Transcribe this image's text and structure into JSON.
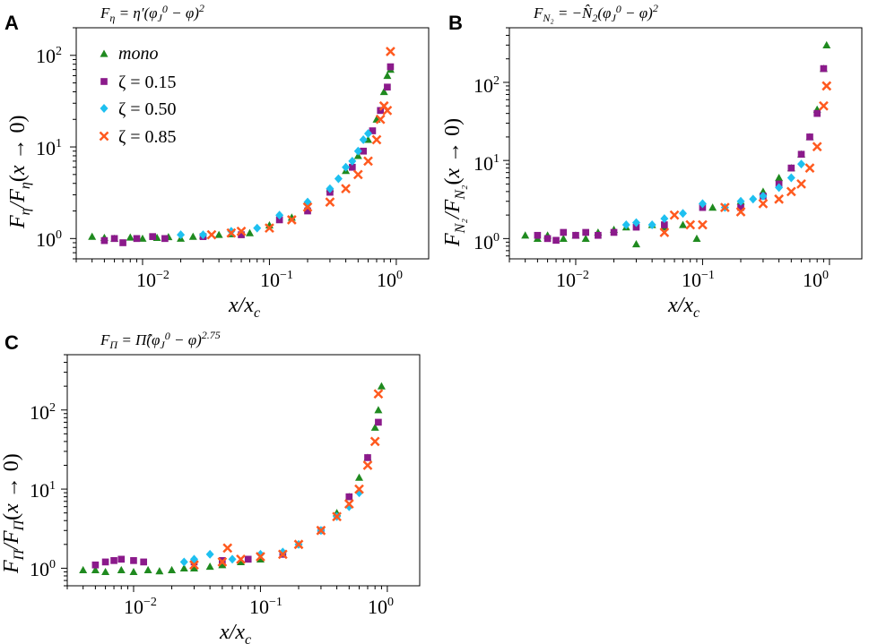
{
  "figure": {
    "colors": {
      "mono": "#1f8a1f",
      "z015": "#8b1a8b",
      "z050": "#1ec0f0",
      "z085": "#ff5a1f"
    }
  },
  "legend": [
    {
      "label": "mono",
      "marker": "triangle",
      "color": "#1f8a1f"
    },
    {
      "label": "ζ = 0.15",
      "marker": "square",
      "color": "#8b1a8b"
    },
    {
      "label": "ζ = 0.50",
      "marker": "diamond",
      "color": "#1ec0f0"
    },
    {
      "label": "ζ = 0.85",
      "marker": "cross",
      "color": "#ff5a1f"
    }
  ],
  "chart_data": [
    {
      "panel": "A",
      "type": "scatter",
      "title": "F_η = η′(φ_J⁰ − φ)²",
      "xlabel": "x/x_c",
      "ylabel": "F_η/F_η(x → 0)",
      "xscale": "log",
      "yscale": "log",
      "xlim": [
        0.003,
        1.8
      ],
      "ylim": [
        0.6,
        200
      ],
      "xticks": [
        "10^-2",
        "10^-1",
        "10^0"
      ],
      "yticks": [
        "10^0",
        "10^1",
        "10^2"
      ],
      "series": [
        {
          "name": "mono",
          "points": [
            [
              0.004,
              1.05
            ],
            [
              0.005,
              1.02
            ],
            [
              0.006,
              1.0
            ],
            [
              0.008,
              1.03
            ],
            [
              0.01,
              1.0
            ],
            [
              0.013,
              1.02
            ],
            [
              0.016,
              1.04
            ],
            [
              0.02,
              1.0
            ],
            [
              0.025,
              1.05
            ],
            [
              0.03,
              1.08
            ],
            [
              0.04,
              1.1
            ],
            [
              0.05,
              1.12
            ],
            [
              0.07,
              1.15
            ],
            [
              0.1,
              1.4
            ],
            [
              0.15,
              1.7
            ],
            [
              0.2,
              2.2
            ],
            [
              0.3,
              3.5
            ],
            [
              0.4,
              5.5
            ],
            [
              0.5,
              8
            ],
            [
              0.6,
              12
            ],
            [
              0.7,
              20
            ],
            [
              0.8,
              40
            ],
            [
              0.85,
              60
            ],
            [
              0.9,
              70
            ]
          ]
        },
        {
          "name": "ζ = 0.15",
          "points": [
            [
              0.005,
              0.95
            ],
            [
              0.006,
              1.0
            ],
            [
              0.007,
              0.9
            ],
            [
              0.009,
              1.0
            ],
            [
              0.012,
              1.05
            ],
            [
              0.015,
              1.0
            ],
            [
              0.03,
              1.05
            ],
            [
              0.06,
              1.1
            ],
            [
              0.12,
              1.6
            ],
            [
              0.2,
              2.0
            ],
            [
              0.3,
              3.2
            ],
            [
              0.45,
              6
            ],
            [
              0.55,
              9
            ],
            [
              0.65,
              15
            ],
            [
              0.75,
              25
            ],
            [
              0.85,
              45
            ],
            [
              0.9,
              75
            ]
          ]
        },
        {
          "name": "ζ = 0.50",
          "points": [
            [
              0.02,
              1.1
            ],
            [
              0.03,
              1.1
            ],
            [
              0.05,
              1.2
            ],
            [
              0.08,
              1.3
            ],
            [
              0.12,
              1.8
            ],
            [
              0.2,
              2.5
            ],
            [
              0.3,
              3.5
            ],
            [
              0.35,
              4.5
            ],
            [
              0.4,
              6
            ],
            [
              0.45,
              7
            ],
            [
              0.5,
              9
            ],
            [
              0.55,
              12
            ],
            [
              0.6,
              14
            ]
          ]
        },
        {
          "name": "ζ = 0.85",
          "points": [
            [
              0.035,
              1.1
            ],
            [
              0.05,
              1.15
            ],
            [
              0.06,
              1.2
            ],
            [
              0.1,
              1.3
            ],
            [
              0.15,
              1.6
            ],
            [
              0.2,
              2.2
            ],
            [
              0.3,
              2.5
            ],
            [
              0.4,
              3.5
            ],
            [
              0.5,
              5
            ],
            [
              0.6,
              7
            ],
            [
              0.7,
              12
            ],
            [
              0.75,
              20
            ],
            [
              0.8,
              28
            ],
            [
              0.85,
              25
            ],
            [
              0.9,
              110
            ]
          ]
        }
      ]
    },
    {
      "panel": "B",
      "type": "scatter",
      "title": "F_N₂ = −N̂₂(φ_J⁰ − φ)²",
      "xlabel": "x/x_c",
      "ylabel": "F_N₂/F_N₂(x → 0)",
      "xscale": "log",
      "yscale": "log",
      "xlim": [
        0.003,
        1.8
      ],
      "ylim": [
        0.55,
        500
      ],
      "xticks": [
        "10^-2",
        "10^-1",
        "10^0"
      ],
      "yticks": [
        "10^0",
        "10^1",
        "10^2"
      ],
      "series": [
        {
          "name": "mono",
          "points": [
            [
              0.004,
              1.1
            ],
            [
              0.005,
              1.0
            ],
            [
              0.006,
              1.1
            ],
            [
              0.008,
              1.0
            ],
            [
              0.01,
              1.1
            ],
            [
              0.012,
              1.0
            ],
            [
              0.015,
              1.2
            ],
            [
              0.02,
              1.3
            ],
            [
              0.025,
              1.4
            ],
            [
              0.03,
              0.85
            ],
            [
              0.04,
              1.5
            ],
            [
              0.05,
              1.4
            ],
            [
              0.07,
              1.5
            ],
            [
              0.09,
              1.0
            ],
            [
              0.12,
              2.5
            ],
            [
              0.2,
              3
            ],
            [
              0.3,
              4
            ],
            [
              0.4,
              6
            ],
            [
              0.5,
              8
            ],
            [
              0.6,
              12
            ],
            [
              0.7,
              20
            ],
            [
              0.8,
              45
            ],
            [
              0.9,
              150
            ],
            [
              0.95,
              300
            ]
          ]
        },
        {
          "name": "ζ = 0.15",
          "points": [
            [
              0.005,
              1.1
            ],
            [
              0.006,
              1.0
            ],
            [
              0.007,
              0.95
            ],
            [
              0.008,
              1.2
            ],
            [
              0.01,
              1.1
            ],
            [
              0.012,
              1.2
            ],
            [
              0.015,
              1.1
            ],
            [
              0.02,
              1.2
            ],
            [
              0.03,
              1.4
            ],
            [
              0.05,
              1.5
            ],
            [
              0.1,
              2.5
            ],
            [
              0.2,
              2.5
            ],
            [
              0.3,
              3.5
            ],
            [
              0.4,
              5
            ],
            [
              0.5,
              8
            ],
            [
              0.6,
              12
            ],
            [
              0.7,
              20
            ],
            [
              0.8,
              40
            ],
            [
              0.9,
              150
            ]
          ]
        },
        {
          "name": "ζ = 0.50",
          "points": [
            [
              0.025,
              1.5
            ],
            [
              0.03,
              1.6
            ],
            [
              0.04,
              1.5
            ],
            [
              0.05,
              1.8
            ],
            [
              0.07,
              2.1
            ],
            [
              0.1,
              2.8
            ],
            [
              0.15,
              2.5
            ],
            [
              0.2,
              3.0
            ],
            [
              0.25,
              3.2
            ],
            [
              0.3,
              3.5
            ],
            [
              0.4,
              4.5
            ],
            [
              0.5,
              6
            ],
            [
              0.6,
              9
            ]
          ]
        },
        {
          "name": "ζ = 0.85",
          "points": [
            [
              0.05,
              1.2
            ],
            [
              0.06,
              2.0
            ],
            [
              0.08,
              1.5
            ],
            [
              0.1,
              1.5
            ],
            [
              0.15,
              2.5
            ],
            [
              0.2,
              2.2
            ],
            [
              0.3,
              2.8
            ],
            [
              0.4,
              3.2
            ],
            [
              0.5,
              4
            ],
            [
              0.6,
              5
            ],
            [
              0.7,
              8
            ],
            [
              0.8,
              15
            ],
            [
              0.9,
              50
            ],
            [
              0.95,
              90
            ]
          ]
        }
      ]
    },
    {
      "panel": "C",
      "type": "scatter",
      "title": "F_Π = Π̂(φ_J⁰ − φ)^2.75",
      "xlabel": "x/x_c",
      "ylabel": "F_Π/F_Π(x → 0)",
      "xscale": "log",
      "yscale": "log",
      "xlim": [
        0.003,
        1.8
      ],
      "ylim": [
        0.6,
        500
      ],
      "xticks": [
        "10^-2",
        "10^-1",
        "10^0"
      ],
      "yticks": [
        "10^0",
        "10^1",
        "10^2"
      ],
      "series": [
        {
          "name": "mono",
          "points": [
            [
              0.004,
              0.95
            ],
            [
              0.005,
              0.95
            ],
            [
              0.006,
              0.9
            ],
            [
              0.008,
              0.95
            ],
            [
              0.01,
              0.9
            ],
            [
              0.013,
              0.95
            ],
            [
              0.016,
              0.92
            ],
            [
              0.02,
              0.95
            ],
            [
              0.025,
              1.0
            ],
            [
              0.03,
              1.0
            ],
            [
              0.04,
              1.05
            ],
            [
              0.05,
              1.1
            ],
            [
              0.07,
              1.2
            ],
            [
              0.1,
              1.3
            ],
            [
              0.15,
              1.5
            ],
            [
              0.2,
              2.0
            ],
            [
              0.3,
              3.0
            ],
            [
              0.4,
              5
            ],
            [
              0.5,
              8
            ],
            [
              0.6,
              14
            ],
            [
              0.7,
              25
            ],
            [
              0.8,
              60
            ],
            [
              0.85,
              100
            ],
            [
              0.9,
              200
            ]
          ]
        },
        {
          "name": "ζ = 0.15",
          "points": [
            [
              0.005,
              1.1
            ],
            [
              0.006,
              1.2
            ],
            [
              0.007,
              1.25
            ],
            [
              0.008,
              1.3
            ],
            [
              0.01,
              1.25
            ],
            [
              0.012,
              1.2
            ],
            [
              0.03,
              1.2
            ],
            [
              0.05,
              1.25
            ],
            [
              0.08,
              1.3
            ],
            [
              0.15,
              1.5
            ],
            [
              0.3,
              3
            ],
            [
              0.5,
              8
            ],
            [
              0.7,
              25
            ],
            [
              0.85,
              70
            ]
          ]
        },
        {
          "name": "ζ = 0.50",
          "points": [
            [
              0.025,
              1.2
            ],
            [
              0.03,
              1.3
            ],
            [
              0.04,
              1.5
            ],
            [
              0.06,
              1.3
            ],
            [
              0.1,
              1.5
            ],
            [
              0.15,
              1.6
            ],
            [
              0.2,
              2.0
            ],
            [
              0.3,
              3.0
            ],
            [
              0.4,
              4.5
            ],
            [
              0.5,
              6
            ],
            [
              0.6,
              9
            ]
          ]
        },
        {
          "name": "ζ = 0.85",
          "points": [
            [
              0.03,
              1.1
            ],
            [
              0.05,
              1.2
            ],
            [
              0.055,
              1.8
            ],
            [
              0.07,
              1.3
            ],
            [
              0.1,
              1.4
            ],
            [
              0.15,
              1.5
            ],
            [
              0.2,
              2.0
            ],
            [
              0.3,
              3.0
            ],
            [
              0.4,
              4.5
            ],
            [
              0.5,
              6.5
            ],
            [
              0.6,
              10
            ],
            [
              0.7,
              20
            ],
            [
              0.8,
              40
            ],
            [
              0.85,
              160
            ]
          ]
        }
      ]
    }
  ]
}
